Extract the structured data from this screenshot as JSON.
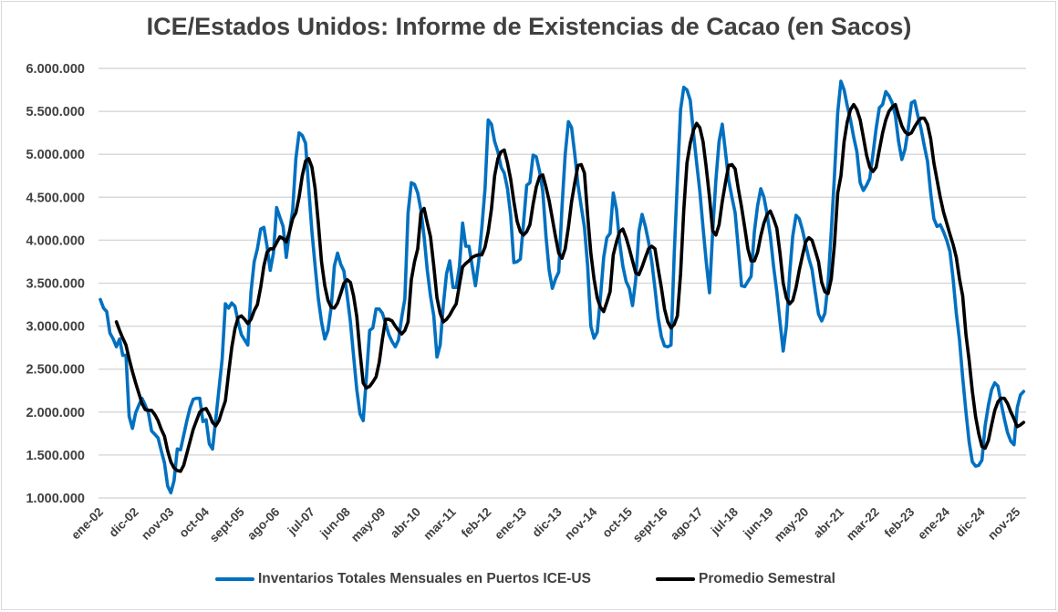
{
  "chart_data": {
    "type": "line",
    "title": "ICE/Estados Unidos: Informe de Existencias de Cacao (en Sacos)",
    "xlabel": "",
    "ylabel": "",
    "x_start": "ene-02",
    "x_end": "ene-26",
    "x_frequency": "monthly",
    "x_tick_labels": [
      "ene-02",
      "dic-02",
      "nov-03",
      "oct-04",
      "sept-05",
      "ago-06",
      "jul-07",
      "jun-08",
      "may-09",
      "abr-10",
      "mar-11",
      "feb-12",
      "ene-13",
      "dic-13",
      "nov-14",
      "oct-15",
      "sept-16",
      "ago-17",
      "jul-18",
      "jun-19",
      "may-20",
      "abr-21",
      "mar-22",
      "feb-23",
      "ene-24",
      "dic-24",
      "nov-25"
    ],
    "x_tick_interval_months": 11,
    "ylim": [
      1000000,
      6000000
    ],
    "y_ticks": [
      1000000,
      1500000,
      2000000,
      2500000,
      3000000,
      3500000,
      4000000,
      4500000,
      5000000,
      5500000,
      6000000
    ],
    "y_tick_labels": [
      "1.000.000",
      "1.500.000",
      "2.000.000",
      "2.500.000",
      "3.000.000",
      "3.500.000",
      "4.000.000",
      "4.500.000",
      "5.000.000",
      "5.500.000",
      "6.000.000"
    ],
    "grid": "horizontal",
    "legend_position": "bottom",
    "series": [
      {
        "name": "Inventarios Totales Mensuales en Puertos ICE-US",
        "color": "#0070C0",
        "values": [
          3310000,
          3210000,
          3170000,
          2920000,
          2850000,
          2760000,
          2850000,
          2660000,
          2660000,
          1950000,
          1810000,
          1990000,
          2080000,
          2160000,
          2080000,
          1990000,
          1780000,
          1740000,
          1700000,
          1550000,
          1410000,
          1140000,
          1060000,
          1200000,
          1570000,
          1560000,
          1730000,
          1900000,
          2050000,
          2150000,
          2160000,
          2160000,
          1890000,
          1910000,
          1630000,
          1570000,
          1910000,
          2270000,
          2620000,
          3260000,
          3210000,
          3270000,
          3230000,
          3050000,
          2900000,
          2840000,
          2780000,
          3400000,
          3750000,
          3900000,
          4130000,
          4150000,
          3930000,
          3650000,
          3850000,
          4380000,
          4270000,
          4160000,
          3800000,
          4100000,
          4350000,
          4950000,
          5250000,
          5220000,
          5130000,
          4600000,
          4100000,
          3700000,
          3320000,
          3050000,
          2850000,
          2950000,
          3220000,
          3700000,
          3850000,
          3720000,
          3640000,
          3350000,
          3050000,
          2650000,
          2260000,
          1980000,
          1900000,
          2400000,
          2950000,
          2980000,
          3200000,
          3200000,
          3150000,
          3030000,
          2900000,
          2820000,
          2760000,
          2840000,
          3100000,
          3320000,
          4320000,
          4670000,
          4650000,
          4550000,
          4350000,
          4040000,
          3650000,
          3350000,
          3120000,
          2640000,
          2780000,
          3250000,
          3610000,
          3760000,
          3450000,
          3450000,
          3690000,
          4200000,
          3930000,
          3930000,
          3700000,
          3470000,
          3750000,
          4150000,
          4600000,
          5400000,
          5350000,
          5150000,
          5030000,
          4850000,
          4780000,
          4600000,
          4290000,
          3740000,
          3750000,
          3780000,
          4200000,
          4640000,
          4670000,
          4990000,
          4970000,
          4800000,
          4570000,
          4050000,
          3650000,
          3440000,
          3550000,
          3630000,
          4390000,
          5000000,
          5380000,
          5310000,
          5000000,
          4650000,
          4390000,
          4150000,
          3700000,
          3000000,
          2860000,
          2930000,
          3330000,
          3800000,
          4030000,
          4080000,
          4550000,
          4360000,
          3970000,
          3700000,
          3520000,
          3440000,
          3240000,
          3540000,
          4100000,
          4300000,
          4160000,
          3980000,
          3750000,
          3440000,
          3100000,
          2880000,
          2770000,
          2760000,
          2780000,
          3830000,
          4700000,
          5520000,
          5780000,
          5750000,
          5630000,
          5250000,
          4900000,
          4570000,
          4150000,
          3750000,
          3390000,
          4100000,
          4700000,
          5150000,
          5350000,
          5030000,
          4700000,
          4500000,
          4320000,
          3900000,
          3470000,
          3460000,
          3520000,
          3580000,
          4100000,
          4400000,
          4600000,
          4500000,
          4300000,
          4050000,
          3700000,
          3400000,
          3050000,
          2710000,
          3000000,
          3600000,
          4050000,
          4290000,
          4250000,
          4120000,
          3950000,
          3790000,
          3660000,
          3400000,
          3140000,
          3060000,
          3150000,
          3500000,
          4100000,
          4750000,
          5490000,
          5850000,
          5750000,
          5560000,
          5400000,
          5200000,
          5030000,
          4670000,
          4580000,
          4640000,
          4720000,
          5000000,
          5300000,
          5540000,
          5580000,
          5730000,
          5680000,
          5600000,
          5450000,
          5150000,
          4940000,
          5060000,
          5300000,
          5600000,
          5620000,
          5450000,
          5300000,
          5100000,
          4920000,
          4550000,
          4250000,
          4160000,
          4180000,
          4100000,
          4000000,
          3870000,
          3550000,
          3150000,
          2840000,
          2400000,
          2000000,
          1650000,
          1420000,
          1370000,
          1380000,
          1440000,
          1840000,
          2080000,
          2260000,
          2340000,
          2300000,
          2100000,
          1920000,
          1760000,
          1660000,
          1620000,
          2050000,
          2200000,
          2240000
        ]
      },
      {
        "name": "Promedio Semestral",
        "color": "#000000",
        "values": [
          null,
          null,
          null,
          null,
          null,
          3050000,
          2950000,
          2860000,
          2780000,
          2620000,
          2470000,
          2340000,
          2220000,
          2100000,
          2030000,
          2020000,
          2020000,
          1970000,
          1900000,
          1800000,
          1720000,
          1550000,
          1420000,
          1350000,
          1320000,
          1310000,
          1380000,
          1520000,
          1660000,
          1800000,
          1900000,
          2000000,
          2030000,
          2040000,
          1970000,
          1880000,
          1840000,
          1900000,
          2020000,
          2130000,
          2450000,
          2750000,
          2970000,
          3100000,
          3120000,
          3080000,
          3030000,
          3080000,
          3180000,
          3250000,
          3450000,
          3700000,
          3860000,
          3900000,
          3900000,
          3970000,
          4040000,
          4020000,
          3980000,
          4100000,
          4250000,
          4320000,
          4500000,
          4750000,
          4920000,
          4950000,
          4850000,
          4600000,
          4200000,
          3750000,
          3470000,
          3300000,
          3220000,
          3210000,
          3270000,
          3380000,
          3500000,
          3540000,
          3510000,
          3350000,
          3110000,
          2700000,
          2340000,
          2280000,
          2300000,
          2350000,
          2410000,
          2580000,
          2850000,
          3080000,
          3080000,
          3060000,
          3000000,
          2950000,
          2910000,
          2950000,
          3050000,
          3540000,
          3750000,
          3900000,
          4320000,
          4370000,
          4200000,
          4040000,
          3700000,
          3330000,
          3150000,
          3050000,
          3080000,
          3130000,
          3200000,
          3260000,
          3480000,
          3690000,
          3730000,
          3760000,
          3800000,
          3820000,
          3830000,
          3830000,
          3920000,
          4100000,
          4360000,
          4750000,
          4950000,
          5030000,
          5050000,
          4900000,
          4710000,
          4450000,
          4220000,
          4100000,
          4060000,
          4100000,
          4180000,
          4420000,
          4620000,
          4740000,
          4760000,
          4620000,
          4460000,
          4250000,
          4040000,
          3850000,
          3790000,
          3900000,
          4150000,
          4450000,
          4670000,
          4870000,
          4880000,
          4780000,
          4290000,
          3850000,
          3550000,
          3330000,
          3220000,
          3170000,
          3280000,
          3400000,
          3830000,
          3980000,
          4100000,
          4130000,
          4030000,
          3900000,
          3760000,
          3620000,
          3600000,
          3690000,
          3800000,
          3900000,
          3930000,
          3900000,
          3670000,
          3450000,
          3200000,
          3050000,
          2980000,
          3020000,
          3120000,
          3610000,
          4350000,
          4900000,
          5130000,
          5280000,
          5360000,
          5310000,
          5150000,
          4850000,
          4500000,
          4110000,
          4060000,
          4180000,
          4450000,
          4670000,
          4870000,
          4880000,
          4830000,
          4600000,
          4390000,
          4150000,
          3900000,
          3760000,
          3760000,
          3860000,
          4050000,
          4200000,
          4300000,
          4340000,
          4250000,
          4140000,
          3850000,
          3500000,
          3330000,
          3260000,
          3300000,
          3450000,
          3650000,
          3820000,
          3980000,
          4030000,
          4000000,
          3880000,
          3750000,
          3510000,
          3400000,
          3380000,
          3550000,
          3950000,
          4550000,
          4750000,
          5150000,
          5380000,
          5520000,
          5580000,
          5520000,
          5400000,
          5200000,
          4990000,
          4850000,
          4800000,
          4850000,
          5050000,
          5250000,
          5400000,
          5500000,
          5550000,
          5580000,
          5450000,
          5330000,
          5260000,
          5230000,
          5250000,
          5320000,
          5380000,
          5420000,
          5420000,
          5350000,
          5180000,
          4900000,
          4700000,
          4500000,
          4330000,
          4200000,
          4070000,
          3950000,
          3800000,
          3550000,
          3350000,
          2900000,
          2600000,
          2240000,
          1950000,
          1750000,
          1600000,
          1580000,
          1670000,
          1850000,
          2020000,
          2120000,
          2160000,
          2160000,
          2100000,
          2000000,
          1920000,
          1830000,
          1850000,
          1880000
        ]
      }
    ]
  }
}
